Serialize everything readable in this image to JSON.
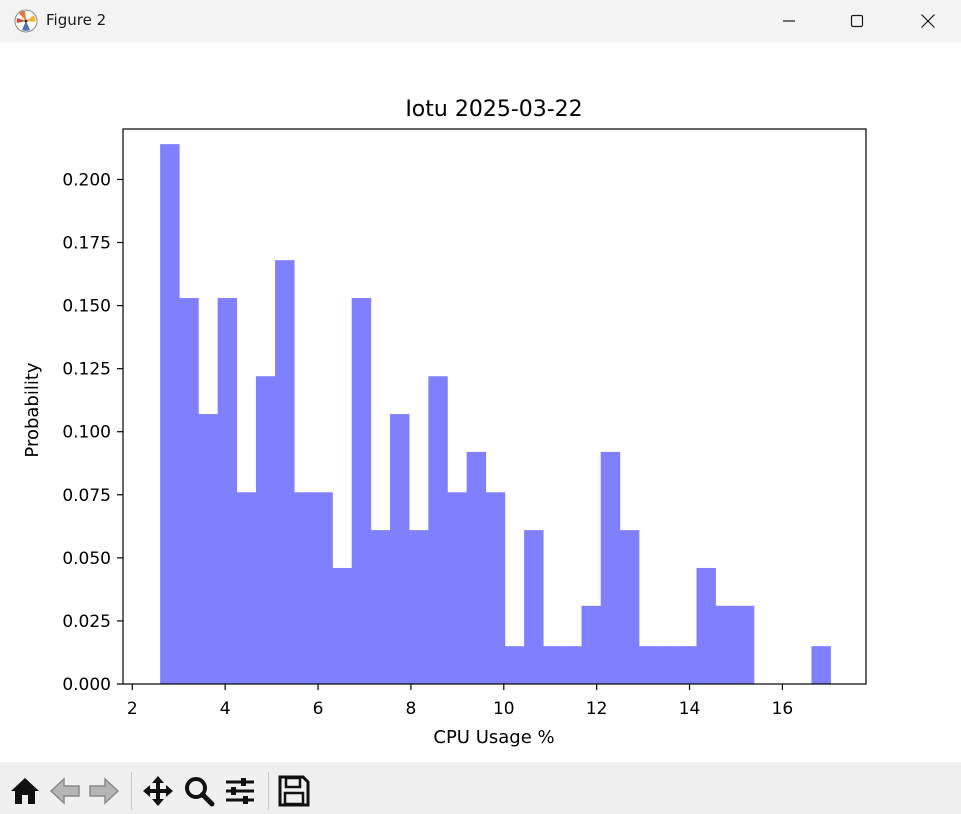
{
  "window": {
    "title": "Figure 2",
    "app_icon": "matplotlib-icon",
    "controls": [
      "minimize-icon",
      "maximize-icon",
      "close-icon"
    ]
  },
  "toolbar": {
    "buttons": [
      "home-icon",
      "back-icon",
      "forward-icon",
      "pan-icon",
      "zoom-icon",
      "configure-icon",
      "save-icon"
    ]
  },
  "chart_data": {
    "type": "bar",
    "histogram": true,
    "title": "Iotu 2025-03-22",
    "xlabel": "CPU Usage %",
    "ylabel": "Probability",
    "xlim": [
      1.8,
      17.8
    ],
    "ylim": [
      0,
      0.22
    ],
    "xticks": [
      "2",
      "4",
      "6",
      "8",
      "10",
      "12",
      "14",
      "16"
    ],
    "yticks": [
      "0.000",
      "0.025",
      "0.050",
      "0.075",
      "0.100",
      "0.125",
      "0.150",
      "0.175",
      "0.200"
    ],
    "bin_start": 2.6,
    "bin_width": 0.4125,
    "values": [
      0.214,
      0.153,
      0.107,
      0.153,
      0.076,
      0.122,
      0.168,
      0.076,
      0.076,
      0.046,
      0.153,
      0.061,
      0.107,
      0.061,
      0.122,
      0.076,
      0.092,
      0.076,
      0.015,
      0.061,
      0.015,
      0.015,
      0.031,
      0.092,
      0.061,
      0.015,
      0.015,
      0.015,
      0.046,
      0.031,
      0.031,
      0,
      0,
      0,
      0.015
    ],
    "bar_color": "#8080ff",
    "grid": false
  }
}
